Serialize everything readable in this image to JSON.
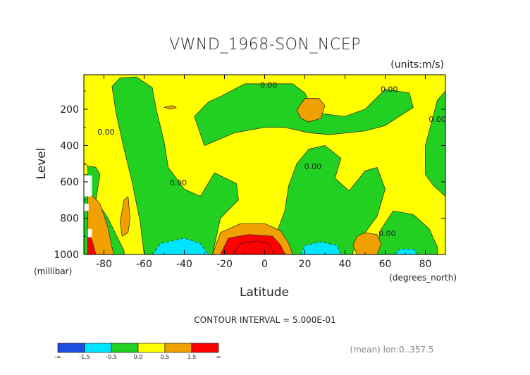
{
  "chart_data": {
    "type": "heatmap",
    "title": "VWND_1968-SON_NCEP",
    "units_label": "(units:m/s)",
    "xlabel": "Latitude",
    "ylabel": "Level",
    "x_units_label": "(degrees_north)",
    "y_units_label": "(millibar)",
    "xlim": [
      -90,
      90
    ],
    "ylim": [
      1000,
      10
    ],
    "x_ticks": [
      -80,
      -60,
      -40,
      -20,
      0,
      20,
      40,
      60,
      80
    ],
    "y_ticks": [
      200,
      400,
      600,
      800,
      1000
    ],
    "contour_interval_text": "CONTOUR INTERVAL = 5.000E-01",
    "mean_note": "(mean) lon:0..357.5",
    "contour_value_labels": [
      "0.00",
      "0.00",
      "0.00",
      "0.00",
      "0.00",
      "0.00",
      "0.00"
    ],
    "colorbar": {
      "labels": [
        "-∞",
        "-1.5",
        "-0.5",
        "0.0",
        "0.5",
        "1.5",
        "∞"
      ],
      "colors": [
        "#1a4fe0",
        "#00e5ff",
        "#22d022",
        "#ffff00",
        "#f0a000",
        "#ff0000"
      ],
      "bin_edges": [
        -2.0,
        -1.0,
        -0.5,
        0.0,
        0.5,
        1.0,
        2.0
      ]
    },
    "regions": [
      {
        "level": -1.5,
        "points": [
          [
            -2,
            120
          ],
          [
            5,
            110
          ],
          [
            12,
            130
          ],
          [
            10,
            175
          ],
          [
            -3,
            190
          ],
          [
            -12,
            175
          ],
          [
            -12,
            140
          ]
        ]
      },
      {
        "level": -0.75,
        "points": [
          [
            -12,
            98
          ],
          [
            2,
            80
          ],
          [
            13,
            95
          ],
          [
            15,
            160
          ],
          [
            5,
            235
          ],
          [
            -10,
            215
          ],
          [
            -17,
            170
          ],
          [
            -17,
            120
          ]
        ]
      },
      {
        "level": -0.25,
        "points": [
          [
            -22,
            130
          ],
          [
            -10,
            60
          ],
          [
            14,
            60
          ],
          [
            20,
            110
          ],
          [
            25,
            220
          ],
          [
            40,
            240
          ],
          [
            50,
            200
          ],
          [
            60,
            90
          ],
          [
            72,
            110
          ],
          [
            74,
            190
          ],
          [
            60,
            290
          ],
          [
            50,
            320
          ],
          [
            32,
            340
          ],
          [
            22,
            330
          ],
          [
            10,
            300
          ],
          [
            0,
            300
          ],
          [
            -15,
            330
          ],
          [
            -30,
            400
          ],
          [
            -35,
            240
          ],
          [
            -28,
            160
          ]
        ]
      },
      {
        "level": -0.25,
        "points": [
          [
            -90,
            510
          ],
          [
            -84,
            520
          ],
          [
            -82,
            560
          ],
          [
            -84,
            700
          ],
          [
            -78,
            800
          ],
          [
            -74,
            890
          ],
          [
            -70,
            980
          ],
          [
            -70,
            1000
          ],
          [
            -90,
            1000
          ]
        ]
      },
      {
        "level": -0.25,
        "points": [
          [
            -76,
            75
          ],
          [
            -72,
            28
          ],
          [
            -64,
            22
          ],
          [
            -56,
            80
          ],
          [
            -54,
            200
          ],
          [
            -50,
            380
          ],
          [
            -48,
            520
          ],
          [
            -40,
            640
          ],
          [
            -32,
            680
          ],
          [
            -25,
            550
          ],
          [
            -14,
            610
          ],
          [
            -13,
            700
          ],
          [
            -22,
            800
          ],
          [
            -26,
            1000
          ],
          [
            -60,
            1000
          ],
          [
            -62,
            820
          ],
          [
            -66,
            600
          ],
          [
            -70,
            420
          ],
          [
            -74,
            220
          ]
        ]
      },
      {
        "level": -0.25,
        "points": [
          [
            16,
            500
          ],
          [
            22,
            420
          ],
          [
            30,
            400
          ],
          [
            38,
            470
          ],
          [
            35,
            580
          ],
          [
            42,
            650
          ],
          [
            50,
            540
          ],
          [
            56,
            520
          ],
          [
            60,
            640
          ],
          [
            56,
            790
          ],
          [
            50,
            880
          ],
          [
            44,
            980
          ],
          [
            44,
            1000
          ],
          [
            4,
            1000
          ],
          [
            6,
            880
          ],
          [
            10,
            760
          ],
          [
            12,
            620
          ]
        ]
      },
      {
        "level": -0.25,
        "points": [
          [
            55,
            1000
          ],
          [
            58,
            860
          ],
          [
            64,
            760
          ],
          [
            74,
            780
          ],
          [
            82,
            860
          ],
          [
            86,
            960
          ],
          [
            86,
            1000
          ]
        ]
      },
      {
        "level": -0.25,
        "points": [
          [
            80,
            400
          ],
          [
            86,
            150
          ],
          [
            90,
            100
          ],
          [
            90,
            680
          ],
          [
            84,
            620
          ],
          [
            80,
            560
          ]
        ]
      },
      {
        "level": -0.75,
        "points": [
          [
            -56,
            1000
          ],
          [
            -52,
            940
          ],
          [
            -40,
            910
          ],
          [
            -32,
            940
          ],
          [
            -28,
            1000
          ]
        ]
      },
      {
        "level": -0.75,
        "points": [
          [
            18,
            1000
          ],
          [
            20,
            950
          ],
          [
            28,
            930
          ],
          [
            36,
            950
          ],
          [
            38,
            1000
          ]
        ]
      },
      {
        "level": -0.75,
        "points": [
          [
            65,
            1000
          ],
          [
            67,
            970
          ],
          [
            74,
            970
          ],
          [
            76,
            1000
          ]
        ]
      },
      {
        "level": 0.25,
        "points": [
          [
            -90,
            510
          ],
          [
            -89,
            500
          ],
          [
            -88,
            520
          ],
          [
            -88,
            560
          ],
          [
            -90,
            560
          ]
        ]
      },
      {
        "level": 0.75,
        "points": [
          [
            -26,
            1000
          ],
          [
            -22,
            880
          ],
          [
            -12,
            830
          ],
          [
            0,
            830
          ],
          [
            8,
            870
          ],
          [
            12,
            940
          ],
          [
            14,
            1000
          ]
        ]
      },
      {
        "level": 1.25,
        "points": [
          [
            -22,
            1000
          ],
          [
            -18,
            910
          ],
          [
            -8,
            890
          ],
          [
            4,
            900
          ],
          [
            8,
            950
          ],
          [
            10,
            1000
          ]
        ]
      },
      {
        "level": 1.75,
        "points": [
          [
            -16,
            1000
          ],
          [
            -12,
            940
          ],
          [
            -4,
            925
          ],
          [
            2,
            940
          ],
          [
            5,
            1000
          ]
        ]
      },
      {
        "level": 0.75,
        "points": [
          [
            -88,
            650
          ],
          [
            -82,
            720
          ],
          [
            -78,
            850
          ],
          [
            -76,
            960
          ],
          [
            -75,
            1000
          ],
          [
            -88,
            1000
          ]
        ]
      },
      {
        "level": 1.75,
        "points": [
          [
            -88,
            880
          ],
          [
            -86,
            920
          ],
          [
            -84,
            1000
          ],
          [
            -88,
            1000
          ]
        ]
      },
      {
        "level": 0.75,
        "points": [
          [
            -72,
            820
          ],
          [
            -70,
            700
          ],
          [
            -68,
            680
          ],
          [
            -67,
            800
          ],
          [
            -68,
            880
          ],
          [
            -71,
            900
          ]
        ]
      },
      {
        "level": 0.75,
        "points": [
          [
            16,
            205
          ],
          [
            20,
            140
          ],
          [
            27,
            140
          ],
          [
            30,
            180
          ],
          [
            28,
            250
          ],
          [
            22,
            270
          ],
          [
            18,
            250
          ]
        ]
      },
      {
        "level": 0.75,
        "points": [
          [
            46,
            900
          ],
          [
            50,
            880
          ],
          [
            56,
            890
          ],
          [
            58,
            940
          ],
          [
            56,
            1000
          ],
          [
            46,
            1000
          ],
          [
            44,
            950
          ]
        ]
      },
      {
        "level": 0.75,
        "points": [
          [
            -50,
            190
          ],
          [
            -46,
            180
          ],
          [
            -44,
            190
          ],
          [
            -47,
            200
          ]
        ]
      }
    ],
    "contour_labels": [
      {
        "text_index": 0,
        "x": 2,
        "y": 82
      },
      {
        "text_index": 1,
        "x": 62,
        "y": 105
      },
      {
        "text_index": 2,
        "x": 86,
        "y": 270
      },
      {
        "text_index": 3,
        "x": -79,
        "y": 340
      },
      {
        "text_index": 4,
        "x": -43,
        "y": 620
      },
      {
        "text_index": 5,
        "x": 24,
        "y": 530
      },
      {
        "text_index": 6,
        "x": 61,
        "y": 900
      }
    ]
  }
}
